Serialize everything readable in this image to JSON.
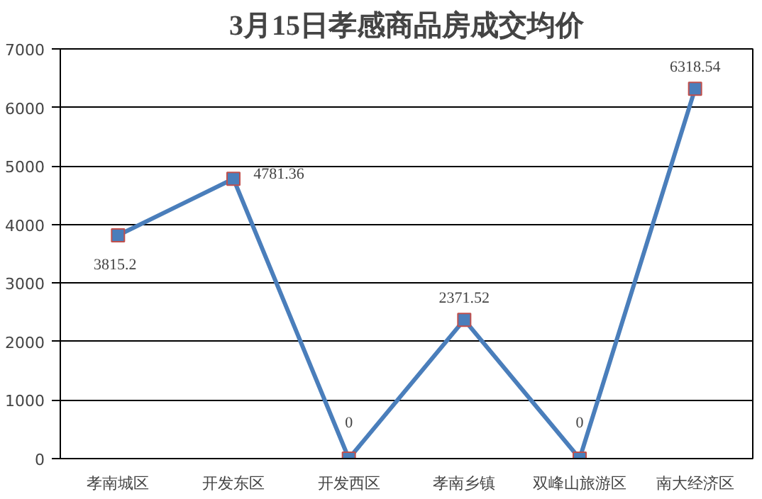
{
  "chart_data": {
    "type": "line",
    "title": "3月15日孝感商品房成交均价",
    "categories": [
      "孝南城区",
      "开发东区",
      "开发西区",
      "孝南乡镇",
      "双峰山旅游区",
      "南大经济区"
    ],
    "series": [
      {
        "color": "#4a7ebb",
        "values": [
          3815.2,
          4781.36,
          0,
          2371.52,
          0,
          6318.54
        ]
      }
    ],
    "data_labels": true,
    "ylim": [
      0,
      7000
    ],
    "yticks": [
      0,
      1000,
      2000,
      3000,
      4000,
      5000,
      6000,
      7000
    ],
    "grid": "y",
    "marker": "square",
    "line_style": "solid"
  }
}
